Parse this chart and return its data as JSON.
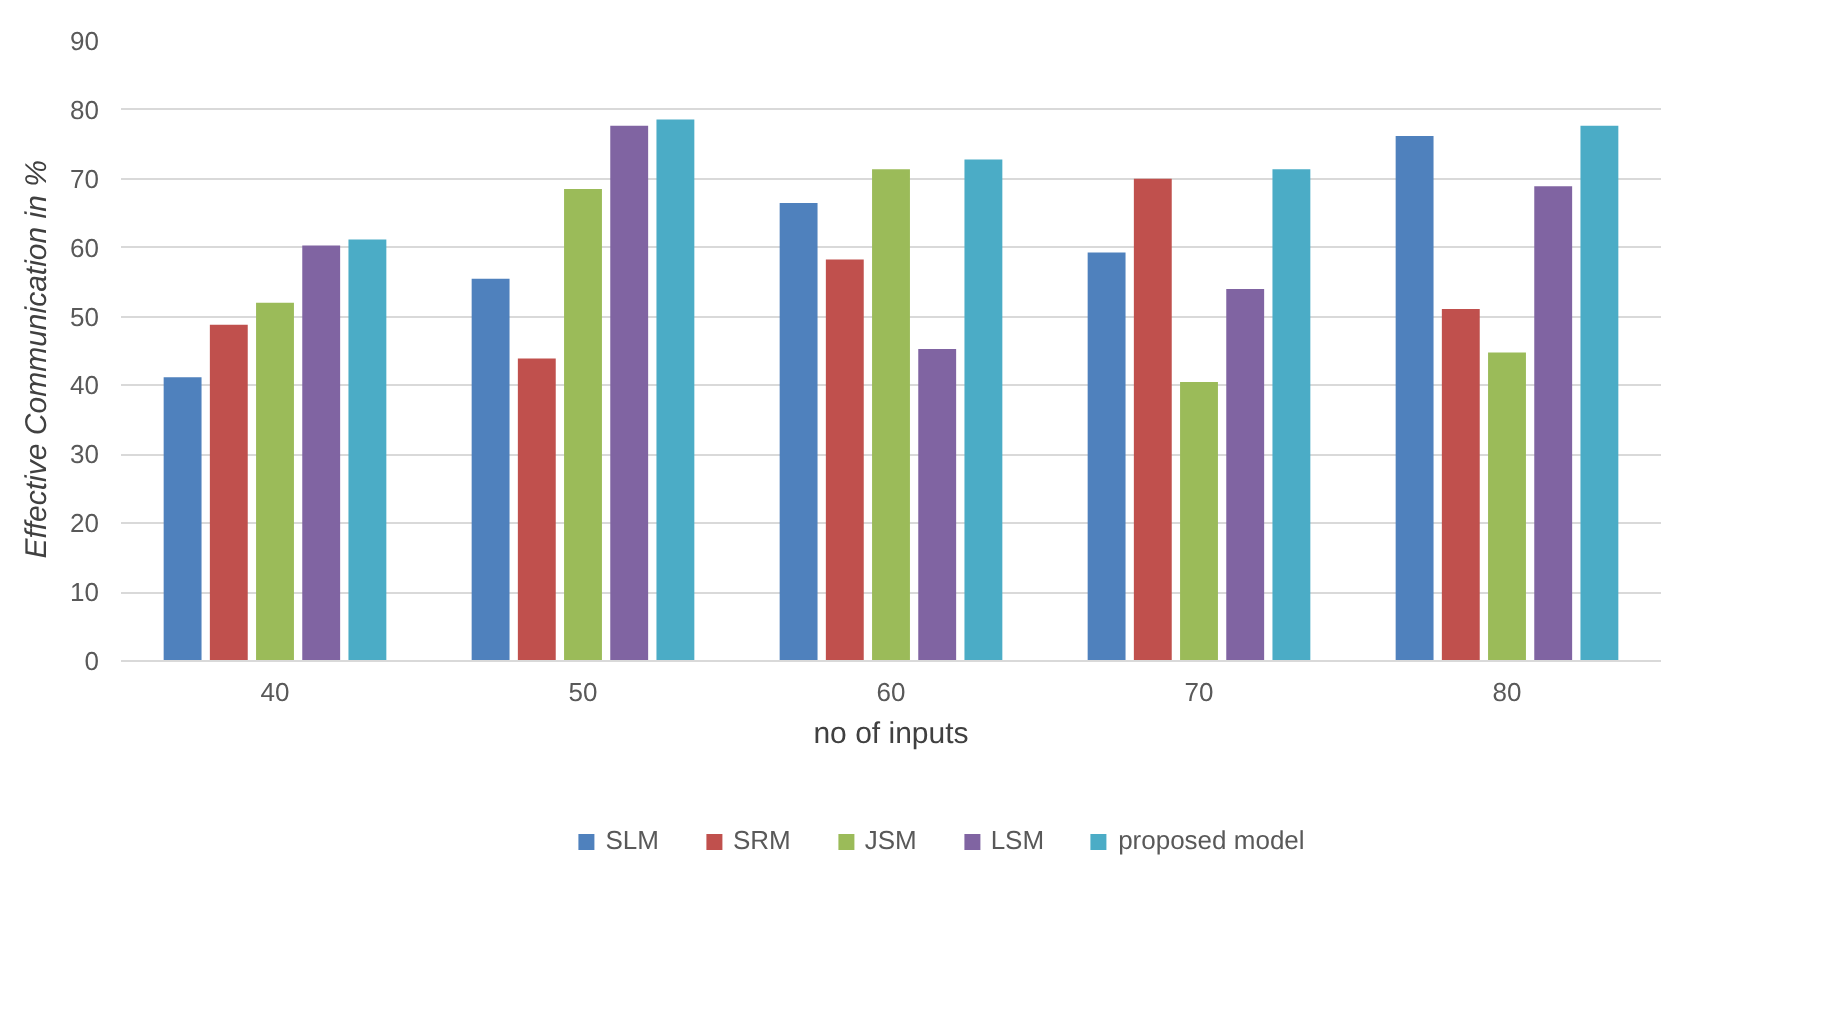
{
  "chart_data": {
    "type": "bar",
    "xlabel": "no of inputs",
    "ylabel": "Effective  Communication  in %",
    "categories": [
      "40",
      "50",
      "60",
      "70",
      "80"
    ],
    "series": [
      {
        "name": "SLM",
        "color": "#4f81bd",
        "values": [
          41.2,
          55.5,
          66.5,
          59.3,
          76.2
        ]
      },
      {
        "name": "SRM",
        "color": "#c0504d",
        "values": [
          48.8,
          43.9,
          58.3,
          70.0,
          51.1
        ]
      },
      {
        "name": "JSM",
        "color": "#9bbb59",
        "values": [
          52.0,
          68.5,
          71.4,
          40.5,
          44.8
        ]
      },
      {
        "name": "LSM",
        "color": "#8064a2",
        "values": [
          60.3,
          77.7,
          45.3,
          54.0,
          68.9
        ]
      },
      {
        "name": "proposed model",
        "color": "#4bacc6",
        "values": [
          61.2,
          78.6,
          72.8,
          71.4,
          77.7
        ]
      }
    ],
    "ylim": [
      0,
      90
    ],
    "yticks": [
      0,
      10,
      20,
      30,
      40,
      50,
      60,
      70,
      80,
      90
    ],
    "grid": "y",
    "legend": "bottom"
  }
}
